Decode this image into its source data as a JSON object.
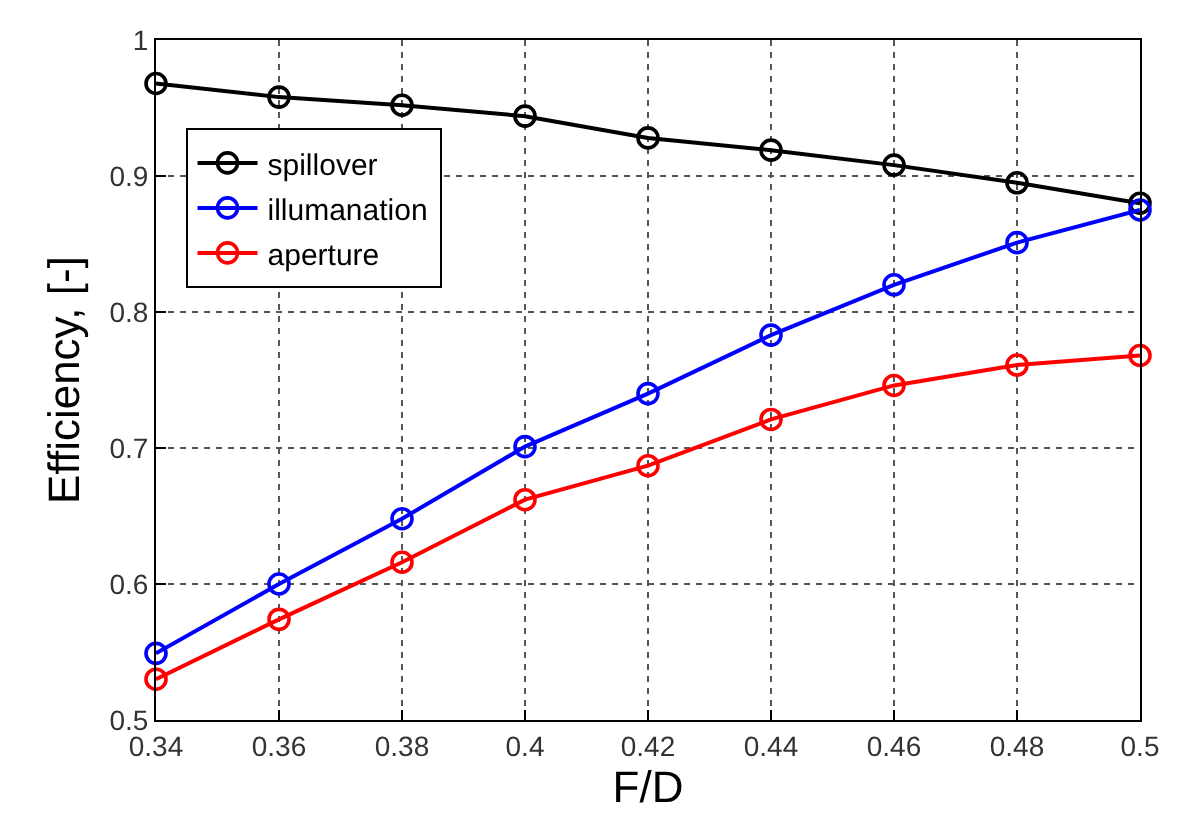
{
  "chart_data": {
    "type": "line",
    "xlabel": "F/D",
    "ylabel": "Efficiency, [-]",
    "x": [
      0.34,
      0.36,
      0.38,
      0.4,
      0.42,
      0.44,
      0.46,
      0.48,
      0.5
    ],
    "series": [
      {
        "name": "spillover",
        "color": "#000000",
        "values": [
          0.968,
          0.958,
          0.952,
          0.944,
          0.928,
          0.919,
          0.908,
          0.895,
          0.88
        ]
      },
      {
        "name": "illumanation",
        "color": "#0000ff",
        "values": [
          0.549,
          0.6,
          0.648,
          0.701,
          0.74,
          0.783,
          0.82,
          0.851,
          0.875
        ]
      },
      {
        "name": "aperture",
        "color": "#ff0000",
        "values": [
          0.53,
          0.574,
          0.616,
          0.662,
          0.687,
          0.721,
          0.746,
          0.761,
          0.768
        ]
      }
    ],
    "xlim": [
      0.34,
      0.5
    ],
    "xticks": [
      0.34,
      0.36,
      0.38,
      0.4,
      0.42,
      0.44,
      0.46,
      0.48,
      0.5
    ],
    "ylim": [
      0.5,
      1
    ],
    "yticks": [
      0.5,
      0.6,
      0.7,
      0.8,
      0.9,
      1
    ],
    "grid": true,
    "legend": "top left",
    "marker": "circle",
    "line_style": "solid"
  }
}
